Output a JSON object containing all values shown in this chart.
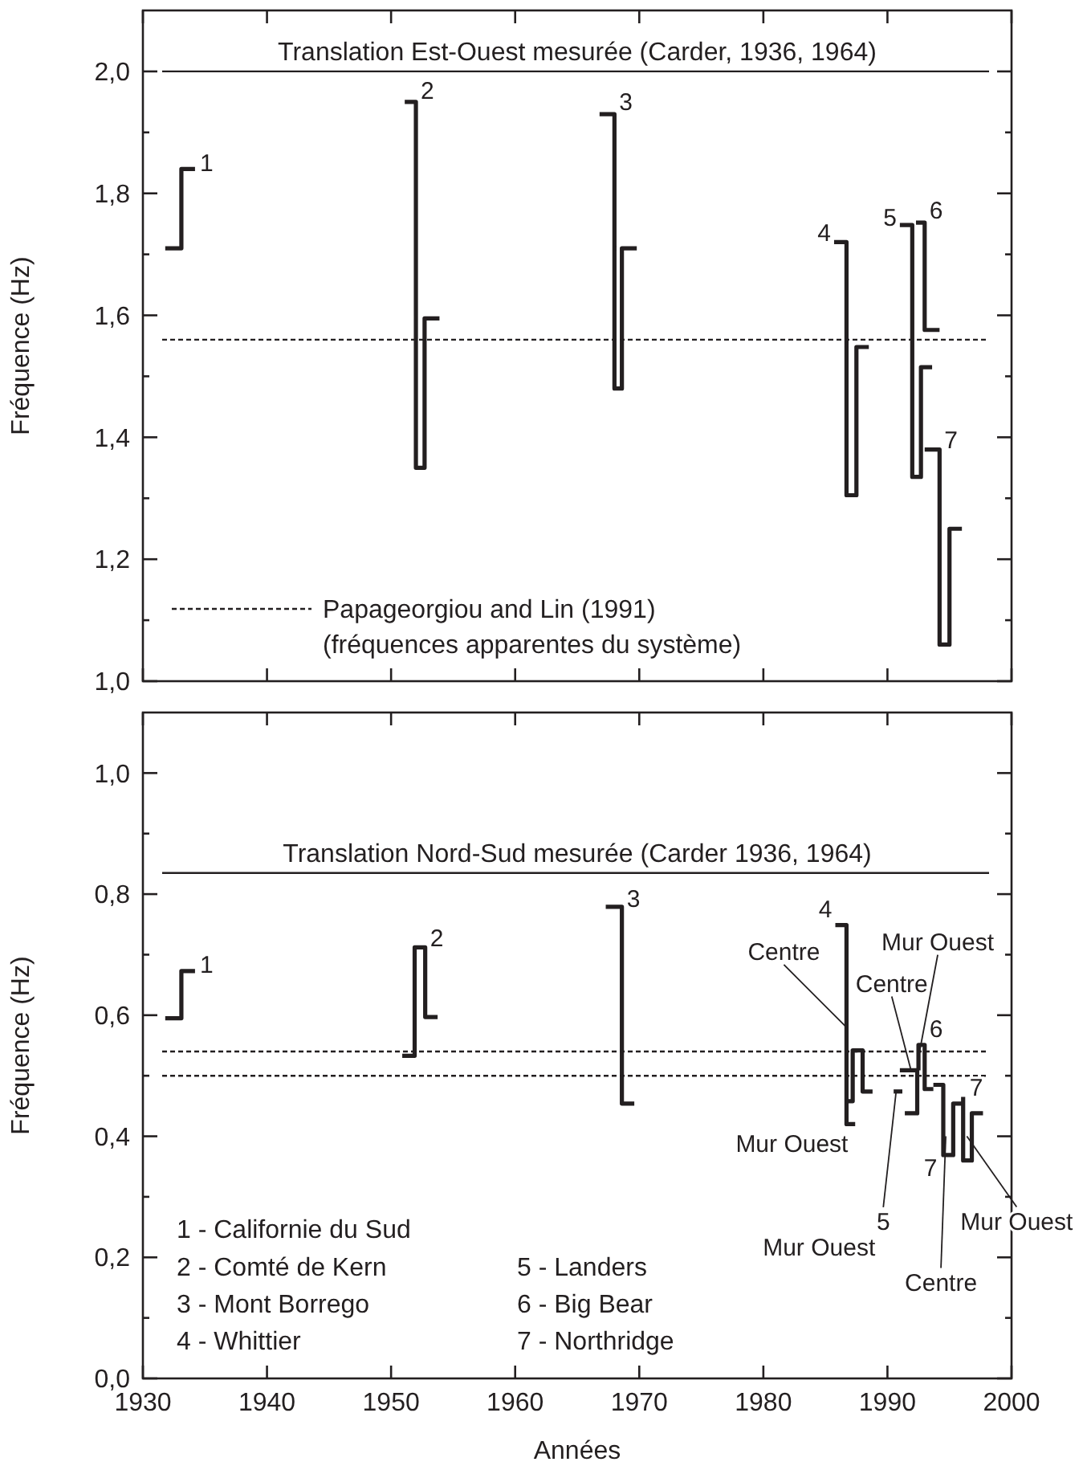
{
  "chart_data": [
    {
      "type": "line",
      "ylabel": "Fréquence (Hz)",
      "xlim": [
        1930,
        2000
      ],
      "xticks": [
        1930,
        1940,
        1950,
        1960,
        1970,
        1980,
        1990,
        2000
      ],
      "ylim": [
        1.0,
        2.1
      ],
      "yticks": [
        {
          "value": 1.0,
          "label": "1,0"
        },
        {
          "value": 1.1,
          "label": null
        },
        {
          "value": 1.2,
          "label": "1,2"
        },
        {
          "value": 1.3,
          "label": null
        },
        {
          "value": 1.4,
          "label": "1,4"
        },
        {
          "value": 1.5,
          "label": null
        },
        {
          "value": 1.6,
          "label": "1,6"
        },
        {
          "value": 1.7,
          "label": null
        },
        {
          "value": 1.8,
          "label": "1,8"
        },
        {
          "value": 1.9,
          "label": null
        },
        {
          "value": 2.0,
          "label": "2,0"
        }
      ],
      "tick_labels": "y",
      "line_style": "solid",
      "series": [
        {
          "color": "#231f20",
          "x": [
            1931.8,
            1933.1,
            1933.1,
            1934.2
          ],
          "values": [
            1.71,
            1.71,
            1.84,
            1.84
          ]
        },
        {
          "color": "#231f20",
          "x": [
            1951.1,
            1952.0,
            1952.0,
            1952.7,
            1952.7,
            1953.9
          ],
          "values": [
            1.95,
            1.95,
            1.35,
            1.35,
            1.595,
            1.595
          ]
        },
        {
          "color": "#231f20",
          "x": [
            1966.8,
            1968.0,
            1968.0,
            1968.6,
            1968.6,
            1969.8
          ],
          "values": [
            1.93,
            1.93,
            1.48,
            1.48,
            1.71,
            1.71
          ]
        },
        {
          "color": "#231f20",
          "x": [
            1985.7,
            1986.7,
            1986.7,
            1987.5,
            1987.5,
            1988.5
          ],
          "values": [
            1.72,
            1.72,
            1.305,
            1.305,
            1.548,
            1.548
          ]
        },
        {
          "color": "#231f20",
          "x": [
            1991.0,
            1992.0,
            1992.0,
            1992.7,
            1992.7,
            1993.6
          ],
          "values": [
            1.748,
            1.748,
            1.335,
            1.335,
            1.515,
            1.515
          ]
        },
        {
          "color": "#231f20",
          "x": [
            1992.3,
            1993.0,
            1993.0,
            1994.2
          ],
          "values": [
            1.752,
            1.752,
            1.576,
            1.576
          ]
        },
        {
          "color": "#231f20",
          "x": [
            1993.0,
            1994.2,
            1994.2,
            1995.0,
            1995.0,
            1996.0
          ],
          "values": [
            1.38,
            1.38,
            1.06,
            1.06,
            1.25,
            1.25
          ]
        }
      ],
      "ref_lines": [
        {
          "axis": "y",
          "value": 2.0,
          "label": "Translation Est-Ouest mesurée (Carder, 1936, 1964)",
          "line_style": "solid"
        },
        {
          "axis": "y",
          "value": 1.56,
          "line_style": "dotted"
        }
      ],
      "annotations": [
        {
          "text": "1",
          "x": 1934.2,
          "y": 1.84
        },
        {
          "text": "2",
          "x": 1952.0,
          "y": 1.95
        },
        {
          "text": "3",
          "x": 1968.0,
          "y": 1.93
        },
        {
          "text": "4",
          "x": 1985.7,
          "y": 1.72
        },
        {
          "text": "5",
          "x": 1991.0,
          "y": 1.748
        },
        {
          "text": "6",
          "x": 1993.0,
          "y": 1.752
        },
        {
          "text": "7",
          "x": 1994.2,
          "y": 1.38
        },
        "Papageorgiou and Lin (1991)\n(fréquences apparentes du système)"
      ]
    },
    {
      "type": "line",
      "ylabel": "Fréquence (Hz)",
      "xlabel": "Années",
      "xlim": [
        1930,
        2000
      ],
      "xticks": [
        1930,
        1940,
        1950,
        1960,
        1970,
        1980,
        1990,
        2000
      ],
      "ylim": [
        0,
        1.1
      ],
      "yticks": [
        {
          "value": 0,
          "label": "0,0"
        },
        {
          "value": 0.1,
          "label": null
        },
        {
          "value": 0.2,
          "label": "0,2"
        },
        {
          "value": 0.3,
          "label": null
        },
        {
          "value": 0.4,
          "label": "0,4"
        },
        {
          "value": 0.5,
          "label": null
        },
        {
          "value": 0.6,
          "label": "0,6"
        },
        {
          "value": 0.7,
          "label": null
        },
        {
          "value": 0.8,
          "label": "0,8"
        },
        {
          "value": 0.9,
          "label": null
        },
        {
          "value": 1.0,
          "label": "1,0"
        }
      ],
      "line_style": "solid",
      "series": [
        {
          "color": "#231f20",
          "x": [
            1931.8,
            1933.1,
            1933.1,
            1934.2
          ],
          "values": [
            0.595,
            0.595,
            0.673,
            0.673
          ]
        },
        {
          "color": "#231f20",
          "x": [
            1950.9,
            1951.9,
            1951.9,
            1952.75,
            1952.75,
            1953.75
          ],
          "values": [
            0.533,
            0.533,
            0.712,
            0.712,
            0.597,
            0.597
          ]
        },
        {
          "color": "#231f20",
          "x": [
            1967.3,
            1968.6,
            1968.6,
            1969.6
          ],
          "values": [
            0.779,
            0.779,
            0.454,
            0.454
          ]
        },
        {
          "color": "#231f20",
          "x": [
            1985.8,
            1986.7,
            1986.7,
            1987.4
          ],
          "values": [
            0.749,
            0.749,
            0.42,
            0.42
          ]
        },
        {
          "color": "#231f20",
          "x": [
            1986.7,
            1987.2,
            1987.2,
            1988.0,
            1988.0,
            1988.8
          ],
          "values": [
            0.458,
            0.458,
            0.542,
            0.542,
            0.474,
            0.474
          ]
        },
        {
          "color": "#231f20",
          "x": [
            1990.5,
            1991.2
          ],
          "values": [
            0.474,
            0.474
          ]
        },
        {
          "color": "#231f20",
          "x": [
            1991.0,
            1992.4,
            1992.4,
            1991.4
          ],
          "values": [
            0.509,
            0.509,
            0.438,
            0.438
          ]
        },
        {
          "color": "#231f20",
          "x": [
            1992.5,
            1992.5,
            1993.0,
            1993.0,
            1993.7
          ],
          "values": [
            0.509,
            0.551,
            0.551,
            0.478,
            0.478
          ]
        },
        {
          "color": "#231f20",
          "x": [
            1993.7,
            1994.5,
            1994.5,
            1995.3,
            1995.3,
            1996.0
          ],
          "values": [
            0.485,
            0.485,
            0.369,
            0.369,
            0.454,
            0.454
          ]
        },
        {
          "color": "#231f20",
          "x": [
            1996.1,
            1996.1,
            1996.8,
            1996.8,
            1997.7
          ],
          "values": [
            0.465,
            0.36,
            0.36,
            0.438,
            0.438
          ]
        }
      ],
      "ref_lines": [
        {
          "axis": "y",
          "value": 0.835,
          "label": "Translation Nord-Sud mesurée (Carder 1936, 1964)",
          "line_style": "solid"
        },
        {
          "axis": "y",
          "value": 0.54,
          "line_style": "dotted"
        },
        {
          "axis": "y",
          "value": 0.5,
          "line_style": "dotted"
        }
      ],
      "annotations": [
        {
          "text": "1",
          "x": 1934.2,
          "y": 0.673
        },
        {
          "text": "2",
          "x": 1952.75,
          "y": 0.712
        },
        {
          "text": "3",
          "x": 1968.6,
          "y": 0.779
        },
        {
          "text": "4",
          "x": 1985.8,
          "y": 0.749
        },
        {
          "text": "Centre",
          "x": 1986.7,
          "y": 0.58
        },
        {
          "text": "Mur Ouest",
          "x": 1986.7,
          "y": 0.42
        },
        {
          "text": "Mur Ouest",
          "x": 1992.5,
          "y": 0.53
        },
        {
          "text": "Centre",
          "x": 1991.9,
          "y": 0.509
        },
        {
          "text": "6",
          "x": 1993.0,
          "y": 0.551
        },
        {
          "text": "7",
          "x": 1996.1,
          "y": 0.465
        },
        {
          "text": "7",
          "x": 1994.5,
          "y": 0.369
        },
        {
          "text": "5",
          "x": 1990.7,
          "y": 0.474
        },
        {
          "text": "Mur Ouest",
          "x": 1990.7,
          "y": 0.474
        },
        {
          "text": "Centre",
          "x": 1994.7,
          "y": 0.4
        },
        {
          "text": "Mur Ouest",
          "x": 1996.4,
          "y": 0.4
        },
        "1 - Californie du Sud",
        "2 - Comté de Kern",
        "3 - Mont Borrego",
        "4 - Whittier",
        "5 - Landers",
        "6 - Big Bear",
        "7 - Northridge"
      ]
    }
  ]
}
